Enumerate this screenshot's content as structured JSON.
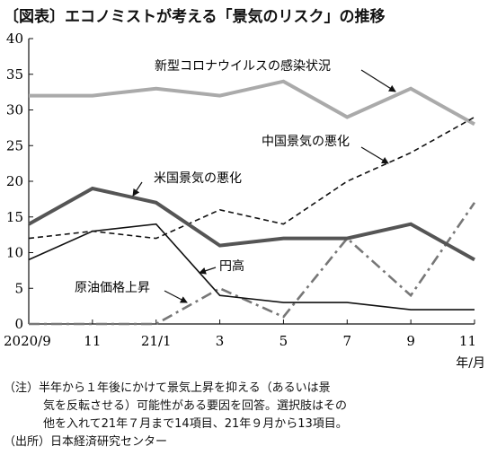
{
  "title": "〔図表〕エコノミストが考える「景気のリスク」の推移",
  "notes": {
    "line1_label": "（注）",
    "line1": "半年から１年後にかけて景気上昇を抑える（あるいは景",
    "line2": "気を反転させる）可能性がある要因を回答。選択肢はその",
    "line3": "他を入れて21年７月まで14項目、21年９月から13項目。"
  },
  "source_label": "（出所）",
  "source": "日本経済研究センター",
  "chart_data": {
    "type": "line",
    "x": [
      "2020/9",
      "11",
      "21/1",
      "3",
      "5",
      "7",
      "9",
      "11"
    ],
    "x_unit": "年/月",
    "ylim": [
      0,
      40
    ],
    "yticks": [
      0,
      5,
      10,
      15,
      20,
      25,
      30,
      35,
      40
    ],
    "series": [
      {
        "name": "新型コロナウイルスの感染状況",
        "values": [
          32,
          32,
          33,
          32,
          34,
          29,
          33,
          28
        ],
        "color": "#aaaaaa",
        "style": "solid-thick"
      },
      {
        "name": "中国景気の悪化",
        "values": [
          12,
          13,
          12,
          16,
          14,
          20,
          24,
          29
        ],
        "color": "#111111",
        "style": "dashed"
      },
      {
        "name": "米国景気の悪化",
        "values": [
          14,
          19,
          17,
          11,
          12,
          12,
          14,
          9
        ],
        "color": "#555555",
        "style": "solid-thick"
      },
      {
        "name": "円高",
        "values": [
          9,
          13,
          14,
          4,
          3,
          3,
          2,
          2
        ],
        "color": "#111111",
        "style": "solid-thin"
      },
      {
        "name": "原油価格上昇",
        "values": [
          0,
          0,
          0,
          5,
          1,
          12,
          4,
          17
        ],
        "color": "#777777",
        "style": "dashdot"
      }
    ]
  }
}
